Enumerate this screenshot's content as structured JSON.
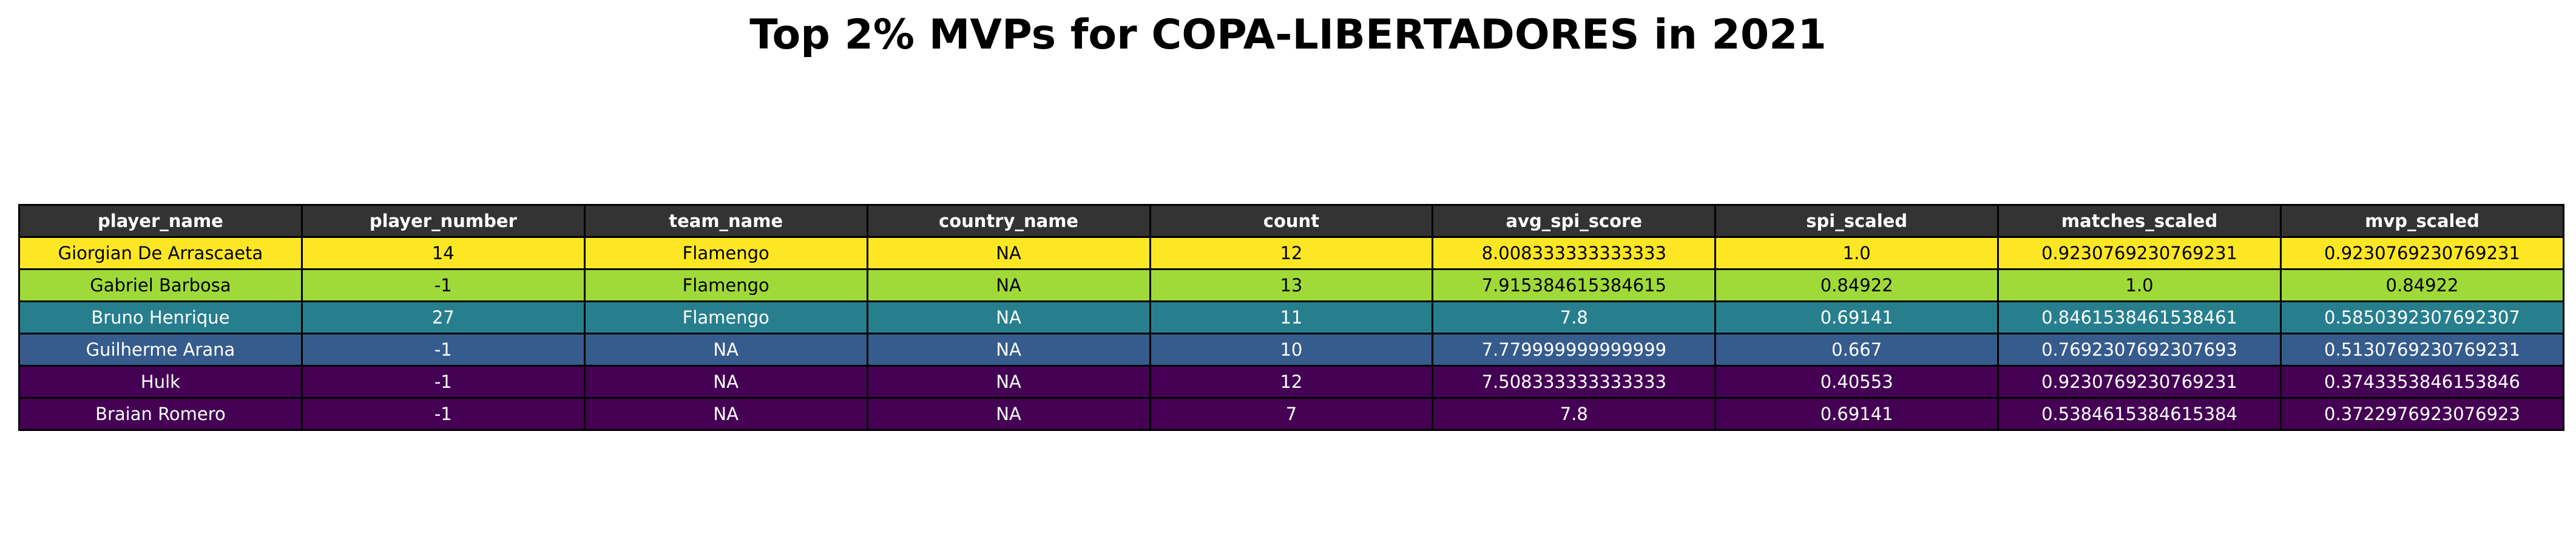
{
  "title": "Top 2% MVPs for COPA-LIBERTADORES in 2021",
  "chart_data": {
    "type": "table",
    "title": "Top 2% MVPs for COPA-LIBERTADORES in 2021",
    "header_color": "#333333",
    "columns": [
      "player_name",
      "player_number",
      "team_name",
      "country_name",
      "count",
      "avg_spi_score",
      "spi_scaled",
      "matches_scaled",
      "mvp_scaled"
    ],
    "rows": [
      {
        "cells": [
          "Giorgian De Arrascaeta",
          "14",
          "Flamengo",
          "NA",
          "12",
          "8.008333333333333",
          "1.0",
          "0.9230769230769231",
          "0.9230769230769231"
        ],
        "color": "#fde725",
        "text_color": "#000000"
      },
      {
        "cells": [
          "Gabriel Barbosa",
          "-1",
          "Flamengo",
          "NA",
          "13",
          "7.915384615384615",
          "0.84922",
          "1.0",
          "0.84922"
        ],
        "color": "#a0da39",
        "text_color": "#000000"
      },
      {
        "cells": [
          "Bruno Henrique",
          "27",
          "Flamengo",
          "NA",
          "11",
          "7.8",
          "0.69141",
          "0.8461538461538461",
          "0.5850392307692307"
        ],
        "color": "#277f8e",
        "text_color": "#ffffff"
      },
      {
        "cells": [
          "Guilherme Arana",
          "-1",
          "NA",
          "NA",
          "10",
          "7.779999999999999",
          "0.667",
          "0.7692307692307693",
          "0.5130769230769231"
        ],
        "color": "#365c8d",
        "text_color": "#ffffff"
      },
      {
        "cells": [
          "Hulk",
          "-1",
          "NA",
          "NA",
          "12",
          "7.508333333333333",
          "0.40553",
          "0.9230769230769231",
          "0.3743353846153846"
        ],
        "color": "#440154",
        "text_color": "#ffffff"
      },
      {
        "cells": [
          "Braian Romero",
          "-1",
          "NA",
          "NA",
          "7",
          "7.8",
          "0.69141",
          "0.5384615384615384",
          "0.3722976923076923"
        ],
        "color": "#440154",
        "text_color": "#ffffff"
      }
    ]
  }
}
